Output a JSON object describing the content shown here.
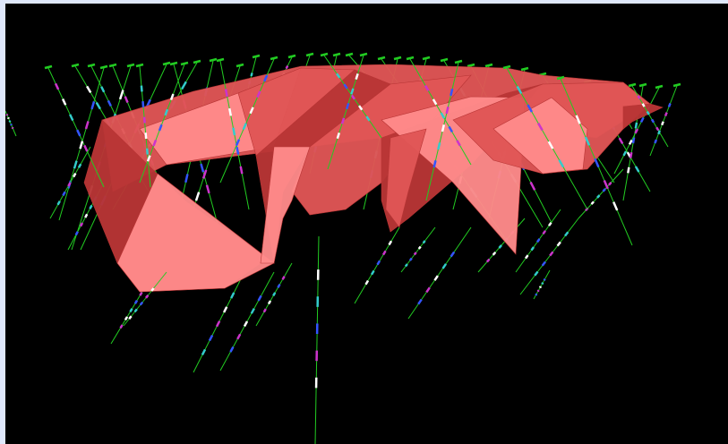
{
  "window": {
    "frame_color": "#dfe8fb",
    "viewport_background": "#000000"
  },
  "scene": {
    "description_free": true,
    "ore_body_color": "#e05555",
    "ore_body_light": "#ff8a8a",
    "ore_body_dark": "#b83535",
    "drillhole_color": "#22cc22",
    "sample_colors": [
      "#3355ff",
      "#cc33cc",
      "#ffffff",
      "#33cccc"
    ],
    "collar_marker_color": "#22cc22"
  }
}
